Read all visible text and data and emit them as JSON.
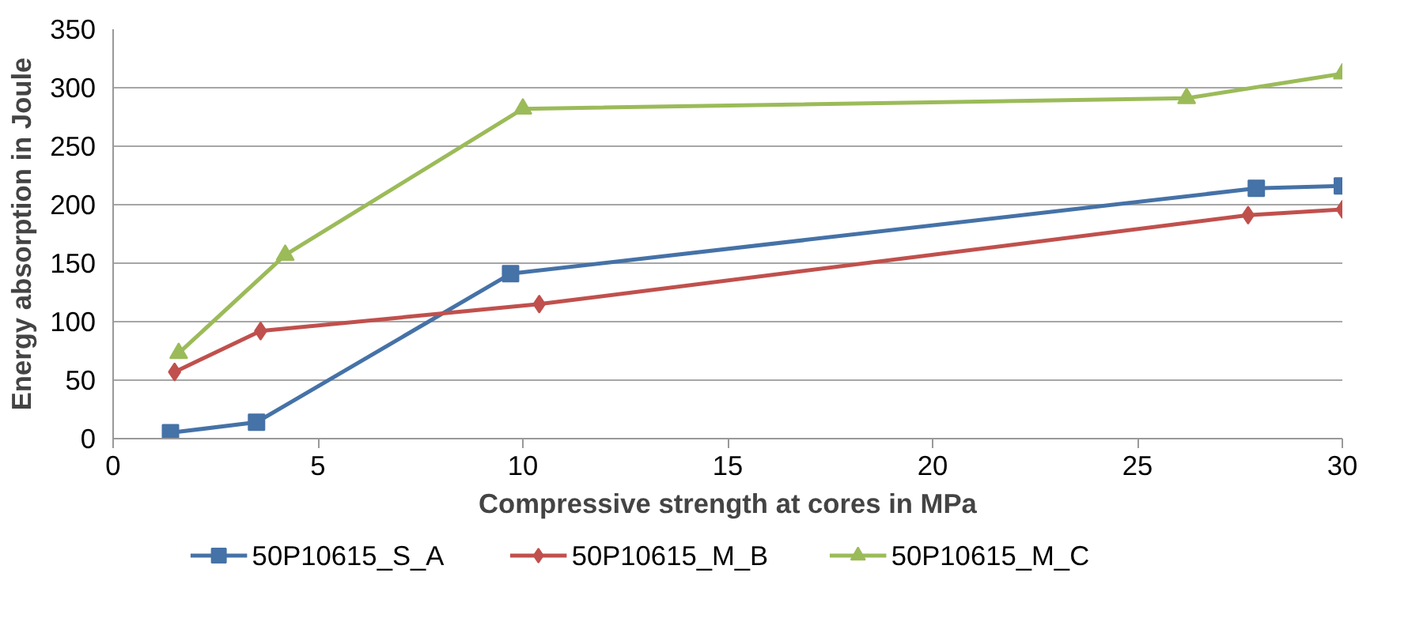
{
  "chart_data": {
    "type": "line",
    "xlabel": "Compressive strength at cores in MPa",
    "ylabel": "Energy absorption in Joule",
    "xlim": [
      0,
      30
    ],
    "xticks": [
      0,
      5,
      10,
      15,
      20,
      25,
      30
    ],
    "ylim": [
      0,
      350
    ],
    "yticks": [
      0,
      50,
      100,
      150,
      200,
      250,
      300,
      350
    ],
    "grid": "y",
    "legend": "bottom",
    "series": [
      {
        "name": "50P10615_S_A",
        "color": "#4572a7",
        "marker": "square",
        "x": [
          1.4,
          3.5,
          9.7,
          27.9,
          30
        ],
        "values": [
          5,
          14,
          141,
          214,
          216
        ]
      },
      {
        "name": "50P10615_M_B",
        "color": "#c0504d",
        "marker": "diamond",
        "x": [
          1.5,
          3.6,
          10.4,
          27.7,
          30
        ],
        "values": [
          57,
          92,
          115,
          191,
          196
        ]
      },
      {
        "name": "50P10615_M_C",
        "color": "#9bbb59",
        "marker": "triangle",
        "x": [
          1.6,
          4.2,
          10.0,
          26.2,
          30
        ],
        "values": [
          73,
          157,
          282,
          291,
          312
        ]
      }
    ]
  }
}
